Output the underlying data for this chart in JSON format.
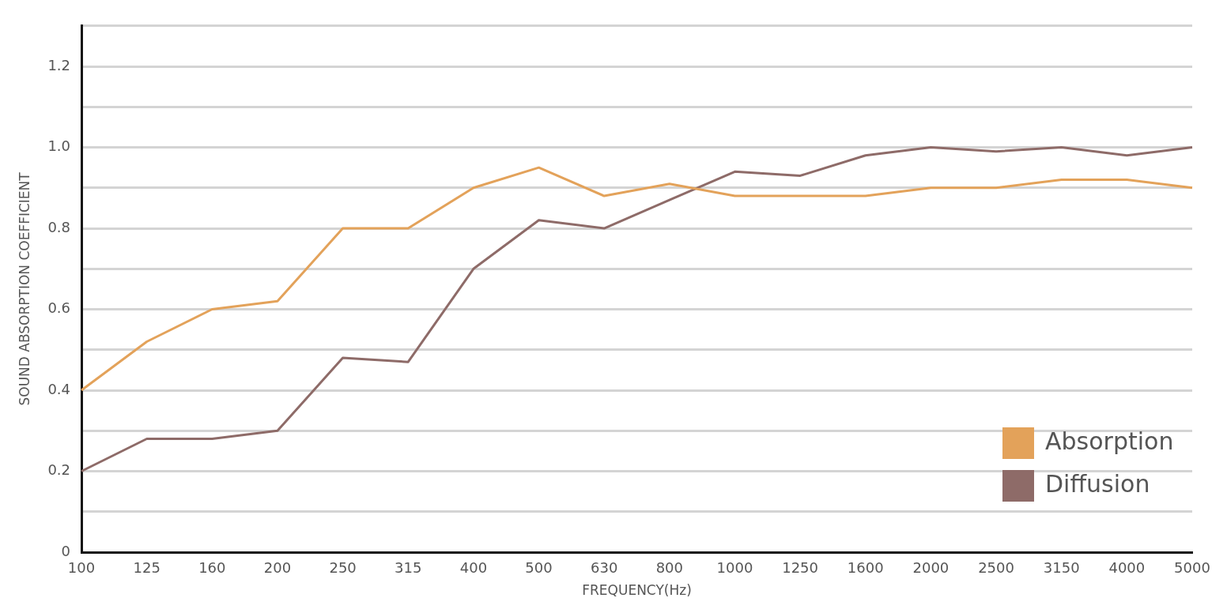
{
  "chart_data": {
    "type": "line",
    "xlabel": "FREQUENCY(Hz)",
    "ylabel": "SOUND ABSORPTION COEFFICIENT",
    "categories": [
      "100",
      "125",
      "160",
      "200",
      "250",
      "315",
      "400",
      "500",
      "630",
      "800",
      "1000",
      "1250",
      "1600",
      "2000",
      "2500",
      "3150",
      "4000",
      "5000"
    ],
    "series": [
      {
        "name": "Absorption",
        "color": "#e3a25a",
        "values": [
          0.4,
          0.52,
          0.6,
          0.62,
          0.8,
          0.8,
          0.9,
          0.95,
          0.88,
          0.91,
          0.88,
          0.88,
          0.88,
          0.9,
          0.9,
          0.92,
          0.92,
          0.9
        ]
      },
      {
        "name": "Diffusion",
        "color": "#8e6b68",
        "values": [
          0.2,
          0.28,
          0.28,
          0.3,
          0.48,
          0.47,
          0.7,
          0.82,
          0.8,
          0.87,
          0.94,
          0.93,
          0.98,
          1.0,
          0.99,
          1.0,
          0.98,
          1.0
        ]
      }
    ],
    "ylim": [
      0,
      1.3
    ],
    "yticks": [
      0,
      {
        "value": 0.1,
        "label": null
      },
      0.2,
      {
        "value": 0.3,
        "label": null
      },
      0.4,
      {
        "value": 0.5,
        "label": null
      },
      0.6,
      {
        "value": 0.7,
        "label": null
      },
      0.8,
      {
        "value": 0.9,
        "label": null
      },
      {
        "value": 1,
        "label": "1.0"
      },
      {
        "value": 1.1,
        "label": null
      },
      1.2,
      {
        "value": 1.3,
        "label": null
      }
    ],
    "grid": "y",
    "legend": "bottom right",
    "marker": "none",
    "line_style": "solid"
  }
}
